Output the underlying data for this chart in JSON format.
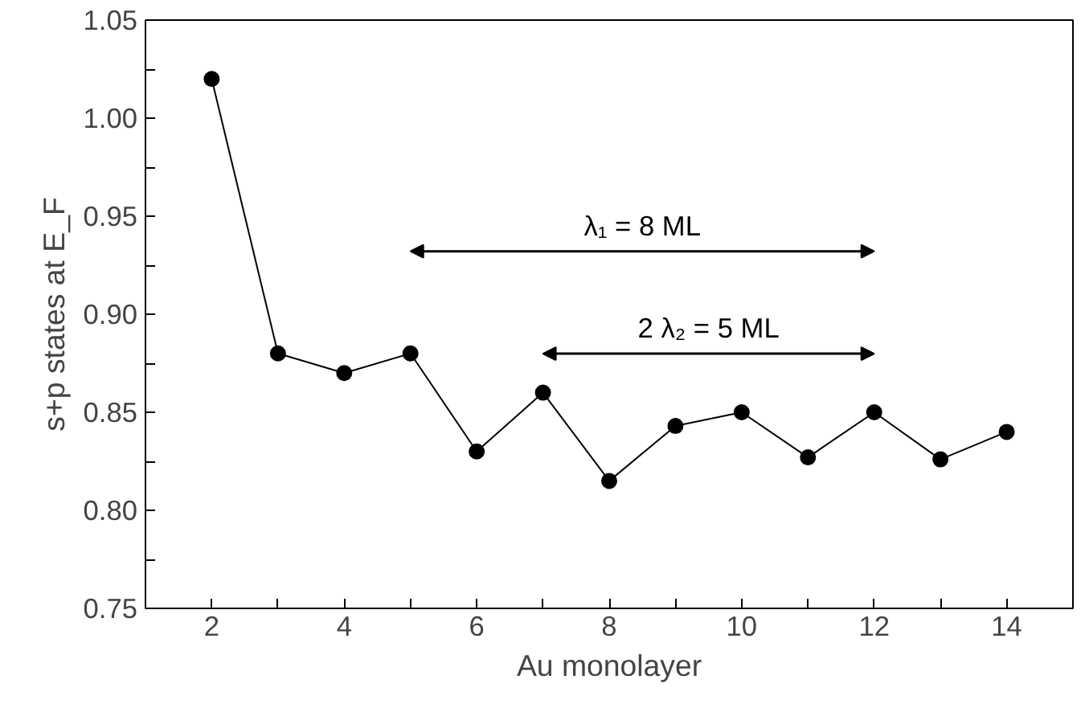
{
  "chart_data": {
    "type": "line",
    "xlabel": "Au monolayer",
    "ylabel": "s+p states at E_F",
    "x": [
      2,
      3,
      4,
      5,
      6,
      7,
      8,
      9,
      10,
      11,
      12,
      13,
      14
    ],
    "series": [
      {
        "color": "#000000",
        "values": [
          1.02,
          0.88,
          0.87,
          0.88,
          0.83,
          0.86,
          0.815,
          0.843,
          0.85,
          0.827,
          0.85,
          0.826,
          0.84
        ]
      }
    ],
    "marker": "circle",
    "line_style": "solid",
    "xlim": [
      1,
      15
    ],
    "ylim": [
      0.75,
      1.05
    ],
    "xticks": [
      2,
      {
        "value": 3,
        "label": null
      },
      4,
      {
        "value": 5,
        "label": null
      },
      6,
      {
        "value": 7,
        "label": null
      },
      8,
      {
        "value": 9,
        "label": null
      },
      10,
      {
        "value": 11,
        "label": null
      },
      12,
      {
        "value": 13,
        "label": null
      },
      14
    ],
    "yticks": [
      0.75,
      {
        "value": 0.775,
        "label": null
      },
      "0.80",
      {
        "value": 0.825,
        "label": null
      },
      0.85,
      {
        "value": 0.875,
        "label": null
      },
      "0.90",
      {
        "value": 0.925,
        "label": null
      },
      0.95,
      {
        "value": 0.975,
        "label": null
      },
      "1.00",
      {
        "value": 1.025,
        "label": null
      },
      1.05
    ],
    "annotations": [
      "λ₁ = 8 ML",
      "2 λ₂ = 5 ML"
    ]
  }
}
